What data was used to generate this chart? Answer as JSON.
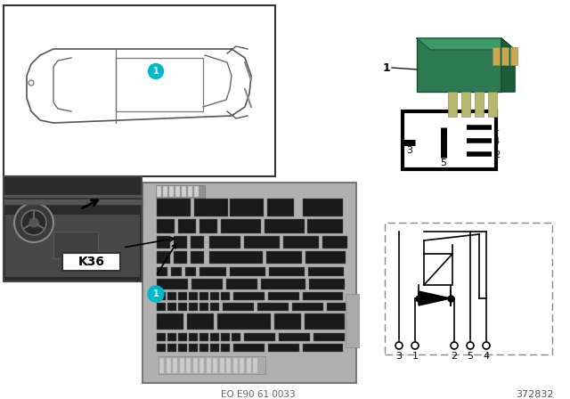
{
  "bg_color": "#ffffff",
  "label_1_color": "#00b8cc",
  "relay_green": "#2d7a52",
  "footer_text": "EO E90 61 0033",
  "part_number": "372832"
}
